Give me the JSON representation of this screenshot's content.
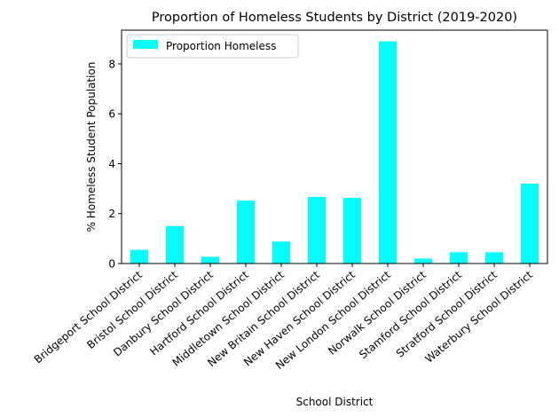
{
  "chart_data": {
    "type": "bar",
    "title": "Proportion of Homeless Students by District (2019-2020)",
    "xlabel": "School District",
    "ylabel": "% Homeless Student Population",
    "categories": [
      "Bridgeport School District",
      "Bristol School District",
      "Danbury School District",
      "Hartford School District",
      "Middletown School District",
      "New Britain School District",
      "New Haven School District",
      "New London School District",
      "Norwalk School District",
      "Stamford School District",
      "Stratford School District",
      "Waterbury School District"
    ],
    "series": [
      {
        "name": "Proportion Homeless",
        "color": "#00ffff",
        "values": [
          0.55,
          1.5,
          0.27,
          2.52,
          0.88,
          2.67,
          2.63,
          8.9,
          0.2,
          0.45,
          0.45,
          3.2
        ]
      }
    ],
    "ylim": [
      0,
      9.35
    ],
    "yticks": [
      0,
      2,
      4,
      6,
      8
    ],
    "grid": false,
    "legend_position": "top-left"
  }
}
